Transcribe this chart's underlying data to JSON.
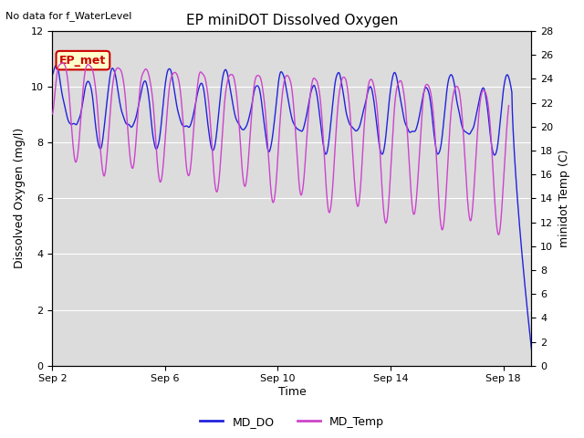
{
  "title": "EP miniDOT Dissolved Oxygen",
  "top_left_text": "No data for f_WaterLevel",
  "xlabel": "Time",
  "ylabel_left": "Dissolved Oxygen (mg/l)",
  "ylabel_right": "minidot Temp (C)",
  "ylim_left": [
    0,
    12
  ],
  "ylim_right": [
    0,
    28
  ],
  "xlim_start": 0,
  "xlim_end": 17,
  "xtick_positions": [
    0,
    4,
    8,
    12,
    16
  ],
  "xtick_labels": [
    "Sep 2",
    "Sep 6",
    "Sep 10",
    "Sep 14",
    "Sep 18"
  ],
  "ytick_left": [
    0,
    2,
    4,
    6,
    8,
    10,
    12
  ],
  "ytick_right": [
    0,
    2,
    4,
    6,
    8,
    10,
    12,
    14,
    16,
    18,
    20,
    22,
    24,
    26,
    28
  ],
  "bg_color": "#dcdcdc",
  "md_do_color": "#2222dd",
  "md_temp_color": "#cc44cc",
  "legend_do_label": "MD_DO",
  "legend_temp_label": "MD_Temp",
  "ep_met_label": "EP_met",
  "ep_met_bg": "#ffffcc",
  "ep_met_border": "#cc0000",
  "ep_met_text_color": "#cc0000",
  "title_fontsize": 11,
  "axis_label_fontsize": 9,
  "tick_fontsize": 8,
  "legend_fontsize": 9,
  "annotation_fontsize": 8
}
